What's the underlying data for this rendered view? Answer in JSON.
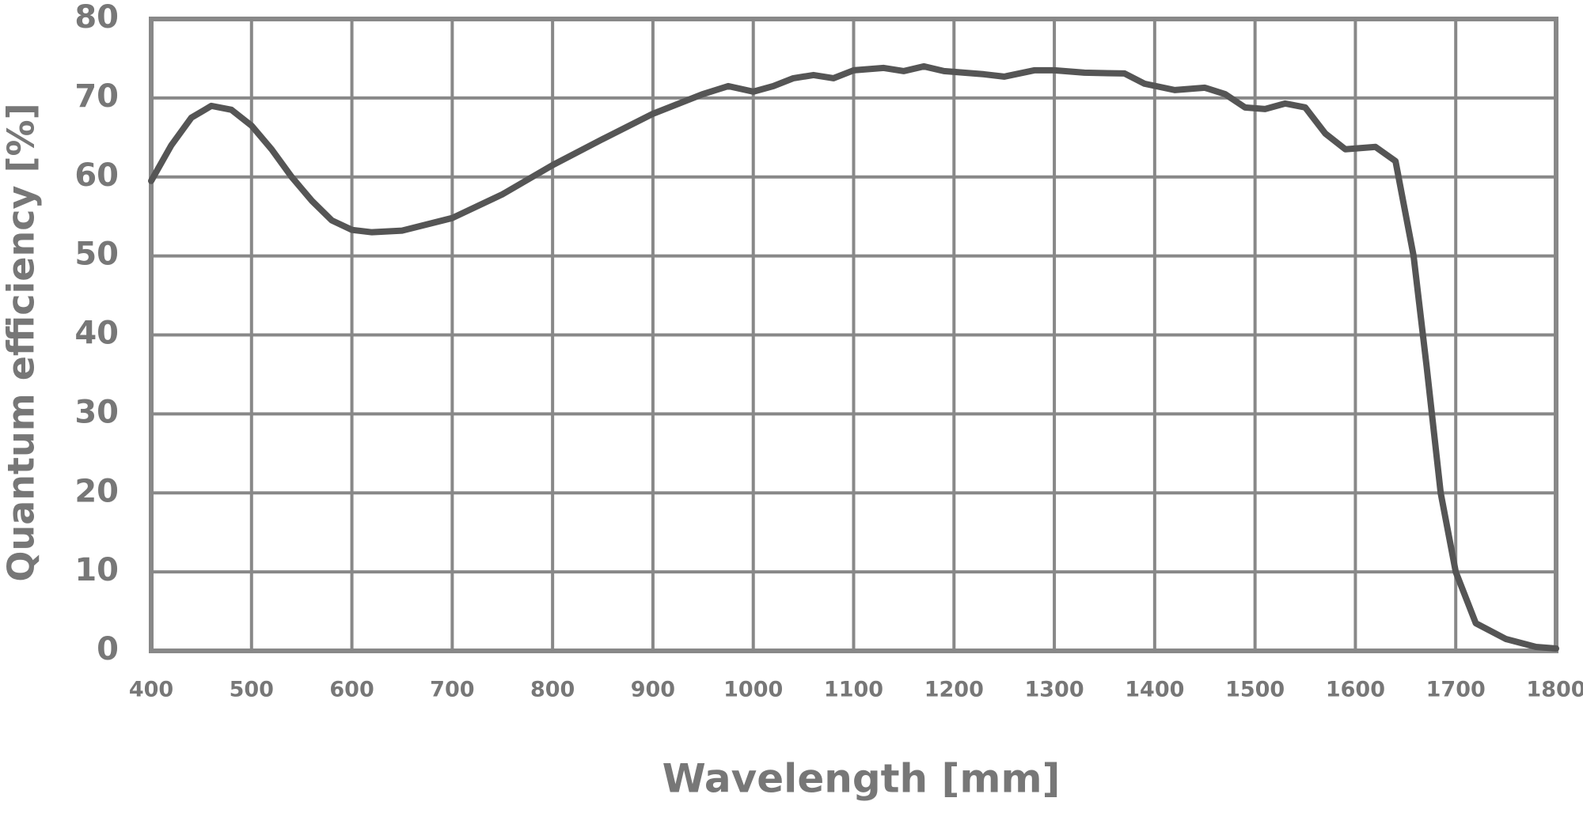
{
  "chart_data": {
    "type": "line",
    "x_label": "Wavelength [mm]",
    "y_label": "Quantum efficiency [%]",
    "xlim": [
      400,
      1800
    ],
    "xticks": [
      400,
      500,
      600,
      700,
      800,
      900,
      1000,
      1100,
      1200,
      1300,
      1400,
      1500,
      1600,
      1700,
      1800
    ],
    "ylim": [
      0,
      80
    ],
    "yticks": [
      0,
      10,
      20,
      30,
      40,
      50,
      60,
      70,
      80
    ],
    "grid": true,
    "series": [
      {
        "color": "#555555",
        "x": [
          400,
          420,
          440,
          460,
          480,
          500,
          520,
          540,
          560,
          580,
          600,
          620,
          650,
          700,
          750,
          800,
          850,
          900,
          950,
          975,
          1000,
          1020,
          1040,
          1060,
          1080,
          1100,
          1130,
          1150,
          1170,
          1190,
          1230,
          1250,
          1280,
          1300,
          1330,
          1370,
          1390,
          1420,
          1450,
          1470,
          1490,
          1510,
          1530,
          1550,
          1570,
          1590,
          1620,
          1640,
          1658,
          1671,
          1685,
          1700,
          1720,
          1750,
          1780,
          1800
        ],
        "values": [
          59.5,
          64,
          67.5,
          69,
          68.5,
          66.5,
          63.5,
          60,
          57,
          54.5,
          53.3,
          53,
          53.2,
          54.8,
          57.8,
          61.5,
          64.8,
          68,
          70.5,
          71.5,
          70.8,
          71.5,
          72.5,
          72.9,
          72.5,
          73.5,
          73.8,
          73.4,
          74,
          73.4,
          73,
          72.7,
          73.5,
          73.5,
          73.2,
          73.1,
          71.8,
          71,
          71.3,
          70.5,
          68.8,
          68.6,
          69.3,
          68.8,
          65.5,
          63.5,
          63.8,
          62,
          50,
          36,
          20,
          10,
          3.5,
          1.5,
          0.5,
          0.3
        ]
      }
    ]
  }
}
